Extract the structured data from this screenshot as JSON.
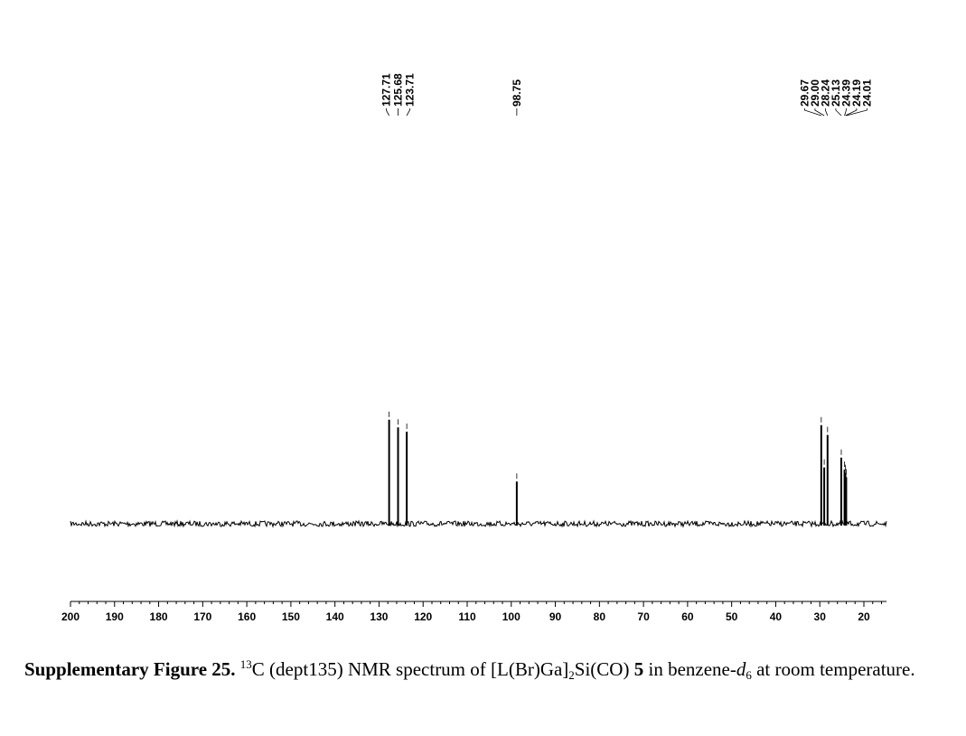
{
  "chart_data": {
    "type": "line",
    "xlim": [
      200,
      15
    ],
    "x_reversed": true,
    "ticks": [
      "200",
      "190",
      "180",
      "170",
      "160",
      "150",
      "140",
      "130",
      "120",
      "110",
      "100",
      "90",
      "80",
      "70",
      "60",
      "50",
      "40",
      "30",
      "20"
    ],
    "peaks": [
      {
        "ppm": 127.71,
        "label": "127.71",
        "rel_intensity": 0.96
      },
      {
        "ppm": 125.68,
        "label": "125.68",
        "rel_intensity": 0.89
      },
      {
        "ppm": 123.71,
        "label": "123.71",
        "rel_intensity": 0.85
      },
      {
        "ppm": 98.75,
        "label": "98.75",
        "rel_intensity": 0.39
      },
      {
        "ppm": 29.67,
        "label": "29.67",
        "rel_intensity": 0.91
      },
      {
        "ppm": 29.0,
        "label": "29.00",
        "rel_intensity": 0.52
      },
      {
        "ppm": 28.24,
        "label": "28.24",
        "rel_intensity": 0.82
      },
      {
        "ppm": 25.13,
        "label": "25.13",
        "rel_intensity": 0.61
      },
      {
        "ppm": 24.39,
        "label": "24.39",
        "rel_intensity": 0.5
      },
      {
        "ppm": 24.19,
        "label": "24.19",
        "rel_intensity": 0.47
      },
      {
        "ppm": 24.01,
        "label": "24.01",
        "rel_intensity": 0.43
      }
    ],
    "grid": false,
    "legend": "none"
  },
  "caption": {
    "label": "Supplementary Figure 25.",
    "sup": "13",
    "t1": "C (dept135) NMR spectrum of [L(Br)Ga]",
    "sub": "2",
    "t2": "Si(CO) ",
    "compound": "5",
    "t3": " in benzene-",
    "solvent_i": "d",
    "solvent_sub": "6",
    "t4": " at room temperature."
  }
}
